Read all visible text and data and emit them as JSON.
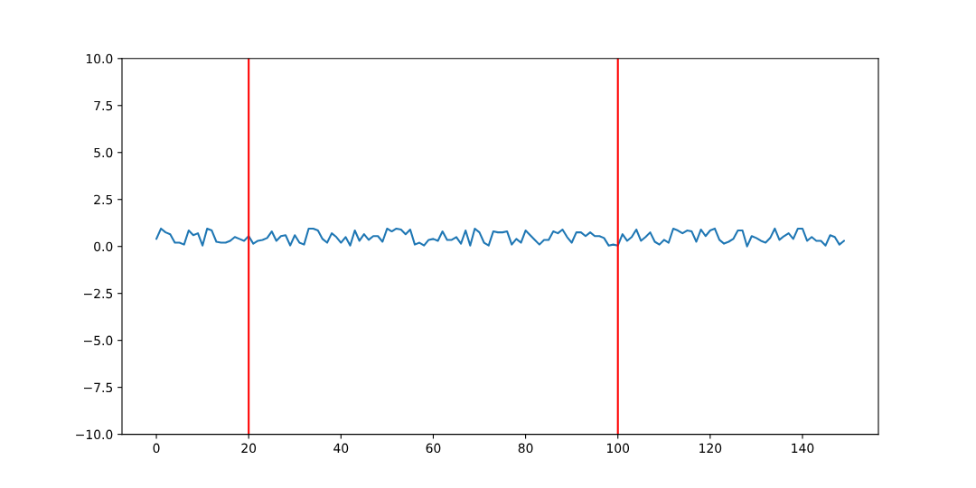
{
  "chart_data": {
    "type": "line",
    "x": [
      0,
      1,
      2,
      3,
      4,
      5,
      6,
      7,
      8,
      9,
      10,
      11,
      12,
      13,
      14,
      15,
      16,
      17,
      18,
      19,
      20,
      21,
      22,
      23,
      24,
      25,
      26,
      27,
      28,
      29,
      30,
      31,
      32,
      33,
      34,
      35,
      36,
      37,
      38,
      39,
      40,
      41,
      42,
      43,
      44,
      45,
      46,
      47,
      48,
      49,
      50,
      51,
      52,
      53,
      54,
      55,
      56,
      57,
      58,
      59,
      60,
      61,
      62,
      63,
      64,
      65,
      66,
      67,
      68,
      69,
      70,
      71,
      72,
      73,
      74,
      75,
      76,
      77,
      78,
      79,
      80,
      81,
      82,
      83,
      84,
      85,
      86,
      87,
      88,
      89,
      90,
      91,
      92,
      93,
      94,
      95,
      96,
      97,
      98,
      99,
      100,
      101,
      102,
      103,
      104,
      105,
      106,
      107,
      108,
      109,
      110,
      111,
      112,
      113,
      114,
      115,
      116,
      117,
      118,
      119,
      120,
      121,
      122,
      123,
      124,
      125,
      126,
      127,
      128,
      129,
      130,
      131,
      132,
      133,
      134,
      135,
      136,
      137,
      138,
      139,
      140,
      141,
      142,
      143,
      144,
      145,
      146,
      147,
      148,
      149
    ],
    "series": [
      {
        "color": "#1f77b4",
        "values": [
          0.4,
          0.95,
          0.75,
          0.65,
          0.2,
          0.2,
          0.1,
          0.85,
          0.6,
          0.7,
          0.05,
          0.95,
          0.85,
          0.25,
          0.2,
          0.2,
          0.3,
          0.5,
          0.4,
          0.3,
          0.55,
          0.15,
          0.3,
          0.35,
          0.45,
          0.8,
          0.3,
          0.55,
          0.6,
          0.05,
          0.6,
          0.2,
          0.1,
          0.95,
          0.95,
          0.85,
          0.4,
          0.2,
          0.7,
          0.5,
          0.2,
          0.5,
          0.05,
          0.85,
          0.3,
          0.65,
          0.35,
          0.55,
          0.55,
          0.25,
          0.95,
          0.8,
          0.95,
          0.9,
          0.65,
          0.9,
          0.1,
          0.2,
          0.05,
          0.35,
          0.4,
          0.3,
          0.8,
          0.35,
          0.35,
          0.5,
          0.15,
          0.85,
          0.05,
          0.95,
          0.75,
          0.2,
          0.05,
          0.8,
          0.75,
          0.75,
          0.8,
          0.1,
          0.4,
          0.2,
          0.85,
          0.6,
          0.35,
          0.1,
          0.35,
          0.35,
          0.8,
          0.7,
          0.9,
          0.5,
          0.2,
          0.75,
          0.75,
          0.55,
          0.75,
          0.55,
          0.55,
          0.45,
          0.05,
          0.1,
          0.05,
          0.65,
          0.3,
          0.5,
          0.9,
          0.3,
          0.5,
          0.75,
          0.25,
          0.1,
          0.35,
          0.2,
          0.95,
          0.85,
          0.7,
          0.85,
          0.8,
          0.25,
          0.9,
          0.55,
          0.85,
          0.95,
          0.35,
          0.15,
          0.25,
          0.4,
          0.85,
          0.85,
          0.0,
          0.55,
          0.45,
          0.3,
          0.2,
          0.45,
          0.95,
          0.35,
          0.55,
          0.7,
          0.4,
          0.95,
          0.95,
          0.3,
          0.5,
          0.3,
          0.3,
          0.05,
          0.6,
          0.5,
          0.1,
          0.3
        ]
      }
    ],
    "xlim": [
      -7.45,
      156.45
    ],
    "xticks": [
      0,
      20,
      40,
      60,
      80,
      100,
      120,
      140
    ],
    "ylim": [
      -10,
      10
    ],
    "yticks": [
      {
        "value": -10,
        "label": "−10.0"
      },
      {
        "value": -7.5,
        "label": "−7.5"
      },
      {
        "value": -5,
        "label": "−5.0"
      },
      {
        "value": -2.5,
        "label": "−2.5"
      },
      {
        "value": 0,
        "label": "0.0"
      },
      {
        "value": 2.5,
        "label": "2.5"
      },
      {
        "value": 5,
        "label": "5.0"
      },
      {
        "value": 7.5,
        "label": "7.5"
      },
      {
        "value": 10,
        "label": "10.0"
      }
    ],
    "ref_lines": [
      {
        "axis": "x",
        "value": 20,
        "color": "#ff0000"
      },
      {
        "axis": "x",
        "value": 100,
        "color": "#ff0000"
      }
    ],
    "grid": false
  }
}
